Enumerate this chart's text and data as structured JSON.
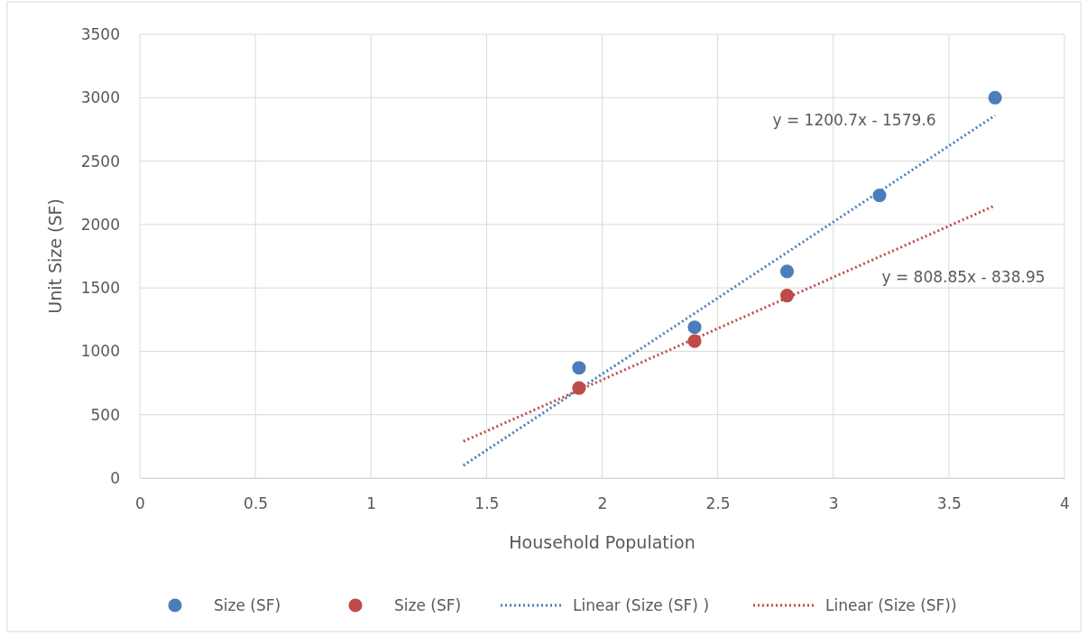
{
  "chart_data": {
    "type": "scatter",
    "xlabel": "Household Population",
    "ylabel": "Unit Size (SF)",
    "xlim": [
      0,
      4
    ],
    "xticks": [
      0,
      0.5,
      1,
      1.5,
      2,
      2.5,
      3,
      3.5,
      4
    ],
    "ylim": [
      0,
      3500
    ],
    "yticks": [
      0,
      500,
      1000,
      1500,
      2000,
      2500,
      3000,
      3500
    ],
    "grid": true,
    "legend": "bottom",
    "marker": "circle",
    "series": [
      {
        "name": "Size (SF)",
        "color": "#4a7ebb",
        "x": [
          1.9,
          2.4,
          2.8,
          3.2,
          3.7
        ],
        "values": [
          870,
          1190,
          1630,
          2230,
          3000
        ]
      },
      {
        "name": "Size (SF)",
        "color": "#be4b48",
        "x": [
          1.9,
          2.4,
          2.8
        ],
        "values": [
          710,
          1080,
          1440
        ]
      },
      {
        "name": "Linear (Size (SF) )",
        "type": "line",
        "line_style": "dotted",
        "marker": "none",
        "color": "#4a7ebb",
        "x": [
          1.4,
          3.7
        ],
        "values": [
          100,
          2860
        ]
      },
      {
        "name": "Linear (Size (SF))",
        "type": "line",
        "line_style": "dotted",
        "marker": "none",
        "color": "#be4b48",
        "x": [
          1.4,
          3.7
        ],
        "values": [
          290,
          2150
        ]
      }
    ],
    "annotations": [
      "y = 1200.7x - 1579.6",
      "y = 808.85x - 838.95"
    ]
  }
}
